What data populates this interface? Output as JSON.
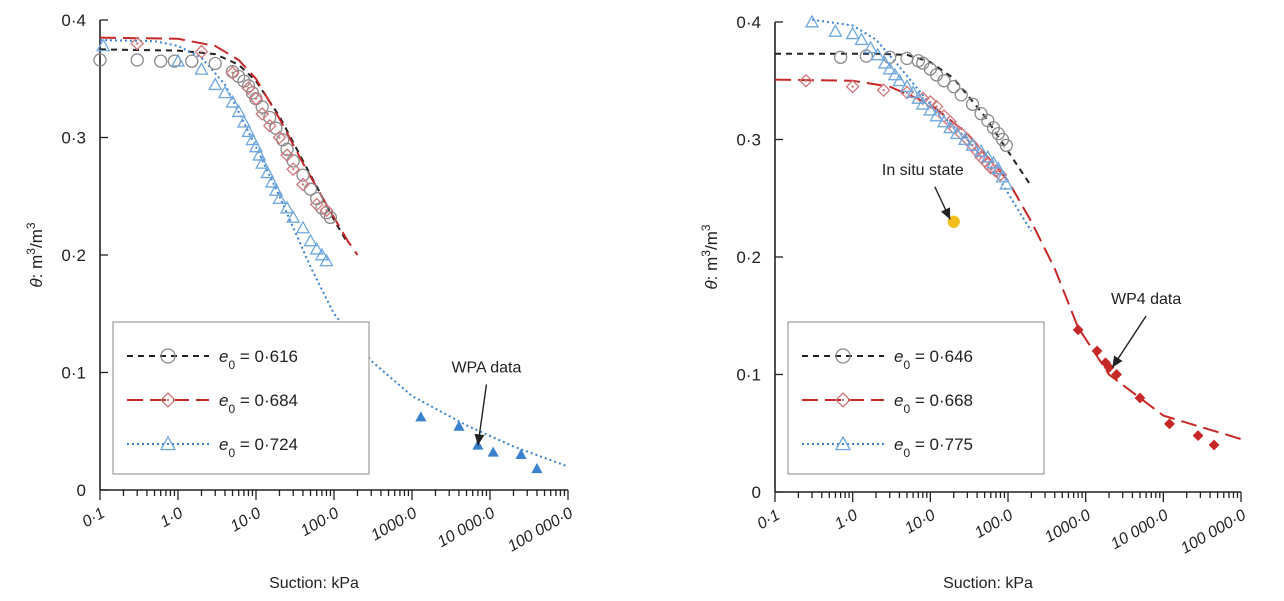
{
  "colors": {
    "black": "#222222",
    "red": "#c62828",
    "blue": "#3a82cf",
    "yellow": "#f2c01d",
    "grey_marker": "#8a8a8a",
    "pink_marker": "#d0787c",
    "light_blue_marker": "#6fa8de"
  },
  "chart_data": [
    {
      "type": "scatter",
      "title": "",
      "xlabel": "Suction: kPa",
      "ylabel": "θ: m3/m3",
      "ylabel_parts": {
        "symbol": "θ",
        "colon": ": m",
        "sup1": "3",
        "mid": "/m",
        "sup2": "3"
      },
      "x_scale": "log",
      "xlim": [
        0.1,
        100000
      ],
      "ylim": [
        0,
        0.4
      ],
      "x_ticks": [
        0.1,
        1,
        10,
        100,
        1000,
        10000,
        100000
      ],
      "x_tick_labels": [
        "0·1",
        "1·0",
        "10·0",
        "100·0",
        "1000·0",
        "10 000·0",
        "100 000·0"
      ],
      "y_ticks": [
        0,
        0.1,
        0.2,
        0.3,
        0.4
      ],
      "y_tick_labels": [
        "0",
        "0·1",
        "0·2",
        "0·3",
        "0·4"
      ],
      "legend_position": "bottom-left",
      "series": [
        {
          "name": "e0 = 0·616",
          "legend_sub": "0",
          "legend_value": " = 0·616",
          "color": "#222222",
          "marker_color": "#8a8a8a",
          "marker": "circle",
          "line": "dashed",
          "points": [
            [
              0.1,
              0.366
            ],
            [
              0.3,
              0.366
            ],
            [
              0.6,
              0.365
            ],
            [
              0.9,
              0.365
            ],
            [
              1.5,
              0.365
            ],
            [
              3,
              0.363
            ],
            [
              5,
              0.356
            ],
            [
              6,
              0.352
            ],
            [
              7,
              0.348
            ],
            [
              8,
              0.344
            ],
            [
              9,
              0.338
            ],
            [
              10,
              0.333
            ],
            [
              12,
              0.326
            ],
            [
              15,
              0.317
            ],
            [
              18,
              0.308
            ],
            [
              22,
              0.298
            ],
            [
              25,
              0.29
            ],
            [
              30,
              0.28
            ],
            [
              40,
              0.268
            ],
            [
              50,
              0.256
            ],
            [
              60,
              0.248
            ],
            [
              70,
              0.24
            ],
            [
              80,
              0.236
            ],
            [
              90,
              0.232
            ]
          ],
          "fit": [
            [
              0.1,
              0.375
            ],
            [
              1,
              0.374
            ],
            [
              3,
              0.371
            ],
            [
              6,
              0.362
            ],
            [
              10,
              0.348
            ],
            [
              20,
              0.318
            ],
            [
              40,
              0.28
            ],
            [
              70,
              0.25
            ],
            [
              100,
              0.23
            ],
            [
              150,
              0.21
            ]
          ]
        },
        {
          "name": "e0 = 0·684",
          "legend_sub": "0",
          "legend_value": " = 0·684",
          "color": "#c62828",
          "marker_color": "#d0787c",
          "marker": "diamond",
          "line": "longdash",
          "points": [
            [
              0.3,
              0.38
            ],
            [
              2,
              0.373
            ],
            [
              5,
              0.355
            ],
            [
              8,
              0.342
            ],
            [
              10,
              0.333
            ],
            [
              12,
              0.32
            ],
            [
              15,
              0.31
            ],
            [
              20,
              0.3
            ],
            [
              25,
              0.285
            ],
            [
              30,
              0.273
            ],
            [
              40,
              0.26
            ],
            [
              60,
              0.243
            ],
            [
              80,
              0.238
            ]
          ],
          "fit": [
            [
              0.1,
              0.385
            ],
            [
              1,
              0.384
            ],
            [
              3,
              0.378
            ],
            [
              6,
              0.366
            ],
            [
              10,
              0.35
            ],
            [
              20,
              0.316
            ],
            [
              40,
              0.278
            ],
            [
              80,
              0.243
            ],
            [
              150,
              0.212
            ],
            [
              200,
              0.2
            ]
          ]
        },
        {
          "name": "e0 = 0·724",
          "legend_sub": "0",
          "legend_value": " = 0·724",
          "color": "#3a82cf",
          "marker_color": "#6fa8de",
          "marker": "triangle",
          "line": "dotted",
          "points": [
            [
              0.11,
              0.378
            ],
            [
              1,
              0.365
            ],
            [
              2,
              0.358
            ],
            [
              3,
              0.345
            ],
            [
              4,
              0.338
            ],
            [
              5,
              0.33
            ],
            [
              6,
              0.322
            ],
            [
              7,
              0.313
            ],
            [
              8,
              0.305
            ],
            [
              9,
              0.298
            ],
            [
              10,
              0.292
            ],
            [
              11,
              0.285
            ],
            [
              12,
              0.278
            ],
            [
              14,
              0.27
            ],
            [
              16,
              0.262
            ],
            [
              18,
              0.255
            ],
            [
              20,
              0.248
            ],
            [
              25,
              0.24
            ],
            [
              30,
              0.232
            ],
            [
              40,
              0.223
            ],
            [
              50,
              0.212
            ],
            [
              60,
              0.205
            ],
            [
              70,
              0.2
            ],
            [
              80,
              0.195
            ]
          ],
          "fit": [
            [
              0.1,
              0.383
            ],
            [
              0.5,
              0.382
            ],
            [
              1,
              0.378
            ],
            [
              2,
              0.368
            ],
            [
              4,
              0.345
            ],
            [
              10,
              0.292
            ],
            [
              20,
              0.25
            ],
            [
              50,
              0.19
            ],
            [
              100,
              0.15
            ],
            [
              300,
              0.11
            ],
            [
              1000,
              0.08
            ],
            [
              5000,
              0.055
            ],
            [
              20000,
              0.037
            ],
            [
              100000,
              0.02
            ]
          ]
        }
      ],
      "extra_points": [
        {
          "label": "WPA data",
          "color": "#3a82cf",
          "marker": "triangle-filled",
          "points": [
            [
              1300,
              0.062
            ],
            [
              4000,
              0.054
            ],
            [
              7000,
              0.038
            ],
            [
              11000,
              0.032
            ],
            [
              25000,
              0.03
            ],
            [
              40000,
              0.018
            ]
          ]
        }
      ],
      "annotations": [
        {
          "text": "WPA data",
          "text_xy": [
            9000,
            0.1
          ],
          "arrow_to": [
            7000,
            0.038
          ]
        }
      ]
    },
    {
      "type": "scatter",
      "title": "",
      "xlabel": "Suction: kPa",
      "ylabel": "θ: m3/m3",
      "ylabel_parts": {
        "symbol": "θ",
        "colon": ": m",
        "sup1": "3",
        "mid": "/m",
        "sup2": "3"
      },
      "x_scale": "log",
      "xlim": [
        0.1,
        100000
      ],
      "ylim": [
        0,
        0.4
      ],
      "x_ticks": [
        0.1,
        1,
        10,
        100,
        1000,
        10000,
        100000
      ],
      "x_tick_labels": [
        "0·1",
        "1·0",
        "10·0",
        "100·0",
        "1000·0",
        "10 000·0",
        "100 000·0"
      ],
      "y_ticks": [
        0,
        0.1,
        0.2,
        0.3,
        0.4
      ],
      "y_tick_labels": [
        "0",
        "0·1",
        "0·2",
        "0·3",
        "0·4"
      ],
      "legend_position": "bottom-left",
      "series": [
        {
          "name": "e0 = 0·646",
          "legend_sub": "0",
          "legend_value": " = 0·646",
          "color": "#222222",
          "marker_color": "#8a8a8a",
          "marker": "circle",
          "line": "dashed",
          "points": [
            [
              0.7,
              0.37
            ],
            [
              1.5,
              0.371
            ],
            [
              3,
              0.37
            ],
            [
              5,
              0.369
            ],
            [
              7,
              0.367
            ],
            [
              8,
              0.365
            ],
            [
              10,
              0.36
            ],
            [
              12,
              0.355
            ],
            [
              15,
              0.35
            ],
            [
              20,
              0.345
            ],
            [
              25,
              0.338
            ],
            [
              35,
              0.33
            ],
            [
              45,
              0.322
            ],
            [
              55,
              0.316
            ],
            [
              65,
              0.31
            ],
            [
              75,
              0.305
            ],
            [
              85,
              0.3
            ],
            [
              95,
              0.295
            ]
          ],
          "fit": [
            [
              0.1,
              0.373
            ],
            [
              2,
              0.373
            ],
            [
              5,
              0.372
            ],
            [
              10,
              0.366
            ],
            [
              20,
              0.352
            ],
            [
              50,
              0.32
            ],
            [
              100,
              0.29
            ],
            [
              200,
              0.26
            ]
          ]
        },
        {
          "name": "e0 = 0·668",
          "legend_sub": "0",
          "legend_value": " = 0·668",
          "color": "#c62828",
          "marker_color": "#d0787c",
          "marker": "diamond",
          "line": "longdash",
          "points": [
            [
              0.25,
              0.35
            ],
            [
              1,
              0.345
            ],
            [
              2.5,
              0.342
            ],
            [
              5,
              0.34
            ],
            [
              8,
              0.335
            ],
            [
              10,
              0.332
            ],
            [
              12,
              0.328
            ],
            [
              15,
              0.32
            ],
            [
              18,
              0.315
            ],
            [
              20,
              0.31
            ],
            [
              25,
              0.305
            ],
            [
              30,
              0.3
            ],
            [
              35,
              0.295
            ],
            [
              40,
              0.29
            ],
            [
              45,
              0.285
            ],
            [
              50,
              0.282
            ],
            [
              55,
              0.279
            ],
            [
              60,
              0.276
            ],
            [
              70,
              0.273
            ],
            [
              80,
              0.27
            ]
          ],
          "fit": [
            [
              0.1,
              0.351
            ],
            [
              1,
              0.35
            ],
            [
              3,
              0.345
            ],
            [
              10,
              0.33
            ],
            [
              30,
              0.305
            ],
            [
              100,
              0.265
            ],
            [
              200,
              0.23
            ],
            [
              400,
              0.19
            ],
            [
              800,
              0.14
            ],
            [
              2000,
              0.1
            ],
            [
              10000,
              0.065
            ],
            [
              100000,
              0.045
            ]
          ]
        },
        {
          "name": "e0 = 0·775",
          "legend_sub": "0",
          "legend_value": " = 0·775",
          "color": "#3a82cf",
          "marker_color": "#6fa8de",
          "marker": "triangle",
          "line": "dotted",
          "points": [
            [
              0.3,
              0.4
            ],
            [
              0.6,
              0.392
            ],
            [
              1,
              0.39
            ],
            [
              1.3,
              0.385
            ],
            [
              1.7,
              0.378
            ],
            [
              2.1,
              0.372
            ],
            [
              2.6,
              0.365
            ],
            [
              3,
              0.36
            ],
            [
              3.5,
              0.355
            ],
            [
              4,
              0.35
            ],
            [
              5,
              0.345
            ],
            [
              6,
              0.34
            ],
            [
              7,
              0.335
            ],
            [
              8,
              0.33
            ],
            [
              10,
              0.325
            ],
            [
              12,
              0.32
            ],
            [
              15,
              0.315
            ],
            [
              18,
              0.31
            ],
            [
              22,
              0.305
            ],
            [
              28,
              0.3
            ],
            [
              35,
              0.295
            ],
            [
              45,
              0.29
            ],
            [
              55,
              0.285
            ],
            [
              65,
              0.28
            ],
            [
              75,
              0.275
            ],
            [
              85,
              0.268
            ],
            [
              95,
              0.262
            ]
          ],
          "fit": [
            [
              0.3,
              0.402
            ],
            [
              1,
              0.397
            ],
            [
              2,
              0.385
            ],
            [
              4,
              0.362
            ],
            [
              10,
              0.33
            ],
            [
              30,
              0.3
            ],
            [
              80,
              0.265
            ],
            [
              150,
              0.235
            ],
            [
              200,
              0.222
            ]
          ]
        }
      ],
      "extra_points": [
        {
          "label": "WP4 data",
          "color": "#c62828",
          "marker": "diamond-filled",
          "points": [
            [
              800,
              0.138
            ],
            [
              1400,
              0.12
            ],
            [
              1800,
              0.11
            ],
            [
              2000,
              0.106
            ],
            [
              2500,
              0.1
            ],
            [
              5000,
              0.08
            ],
            [
              12000,
              0.058
            ],
            [
              28000,
              0.048
            ],
            [
              45000,
              0.04
            ]
          ]
        },
        {
          "label": "In situ state",
          "color": "#f2c01d",
          "marker": "circle-filled",
          "points": [
            [
              20,
              0.23
            ]
          ]
        }
      ],
      "annotations": [
        {
          "text": "In situ state",
          "text_xy": [
            8,
            0.27
          ],
          "arrow_to": [
            18,
            0.232
          ]
        },
        {
          "text": "WP4 data",
          "text_xy": [
            6000,
            0.16
          ],
          "arrow_to": [
            2200,
            0.106
          ]
        }
      ]
    }
  ]
}
